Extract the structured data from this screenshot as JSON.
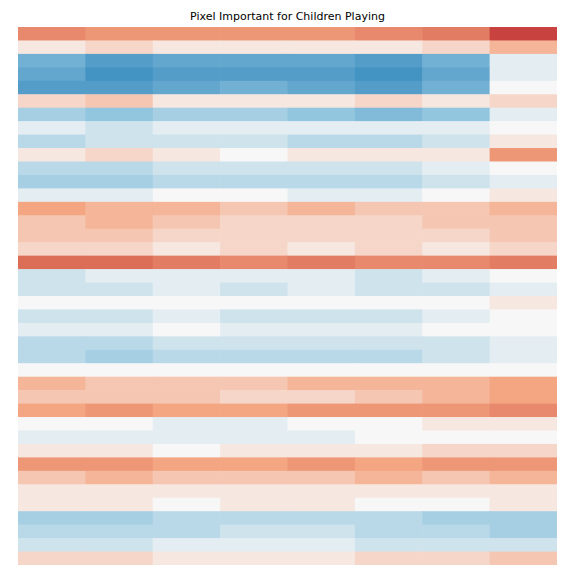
{
  "chart_data": {
    "type": "heatmap",
    "title": "Pixel Important for Children Playing",
    "tick_labels": false,
    "grid": false,
    "zlim": [
      -1,
      1
    ],
    "cells": [
      [
        0.35,
        0.3,
        0.3,
        0.3,
        0.3,
        0.35,
        0.4,
        0.6
      ],
      [
        0.05,
        0.1,
        0.05,
        0.05,
        0.05,
        0.05,
        0.1,
        0.2
      ],
      [
        -0.35,
        -0.45,
        -0.4,
        -0.4,
        -0.4,
        -0.45,
        -0.35,
        -0.05
      ],
      [
        -0.4,
        -0.5,
        -0.45,
        -0.45,
        -0.45,
        -0.5,
        -0.4,
        -0.05
      ],
      [
        -0.45,
        -0.45,
        -0.4,
        -0.35,
        -0.4,
        -0.45,
        -0.35,
        0.0
      ],
      [
        0.1,
        0.15,
        0.05,
        0.05,
        0.05,
        0.1,
        0.05,
        0.1
      ],
      [
        -0.2,
        -0.25,
        -0.2,
        -0.2,
        -0.25,
        -0.3,
        -0.25,
        -0.05
      ],
      [
        -0.05,
        -0.1,
        -0.05,
        -0.05,
        -0.05,
        -0.05,
        -0.05,
        0.0
      ],
      [
        -0.15,
        -0.1,
        -0.1,
        -0.1,
        -0.15,
        -0.15,
        -0.1,
        0.05
      ],
      [
        0.05,
        0.1,
        0.05,
        0.0,
        0.05,
        0.05,
        0.05,
        0.3
      ],
      [
        -0.15,
        -0.15,
        -0.1,
        -0.1,
        -0.1,
        -0.1,
        -0.05,
        0.0
      ],
      [
        -0.2,
        -0.2,
        -0.15,
        -0.15,
        -0.15,
        -0.15,
        -0.1,
        -0.05
      ],
      [
        -0.05,
        -0.05,
        0.0,
        0.0,
        -0.05,
        -0.05,
        0.0,
        0.05
      ],
      [
        0.25,
        0.2,
        0.2,
        0.15,
        0.2,
        0.15,
        0.15,
        0.2
      ],
      [
        0.15,
        0.2,
        0.15,
        0.1,
        0.1,
        0.1,
        0.15,
        0.15
      ],
      [
        0.15,
        0.15,
        0.1,
        0.1,
        0.1,
        0.1,
        0.1,
        0.15
      ],
      [
        0.1,
        0.1,
        0.05,
        0.1,
        0.05,
        0.1,
        0.05,
        0.1
      ],
      [
        0.45,
        0.45,
        0.4,
        0.35,
        0.4,
        0.35,
        0.35,
        0.4
      ],
      [
        -0.1,
        -0.05,
        -0.05,
        -0.05,
        -0.05,
        -0.1,
        -0.05,
        0.0
      ],
      [
        -0.1,
        -0.1,
        -0.05,
        -0.1,
        -0.05,
        -0.1,
        -0.1,
        -0.05
      ],
      [
        0.0,
        0.0,
        0.0,
        0.0,
        0.0,
        0.0,
        0.0,
        0.05
      ],
      [
        -0.1,
        -0.1,
        -0.05,
        -0.1,
        -0.1,
        -0.1,
        -0.05,
        0.0
      ],
      [
        -0.05,
        -0.05,
        0.0,
        -0.05,
        -0.05,
        -0.05,
        0.0,
        0.0
      ],
      [
        -0.15,
        -0.15,
        -0.1,
        -0.1,
        -0.1,
        -0.1,
        -0.1,
        -0.05
      ],
      [
        -0.15,
        -0.2,
        -0.15,
        -0.15,
        -0.15,
        -0.15,
        -0.1,
        -0.05
      ],
      [
        0.0,
        0.0,
        0.0,
        0.0,
        0.0,
        0.0,
        0.0,
        0.0
      ],
      [
        0.2,
        0.15,
        0.15,
        0.15,
        0.2,
        0.2,
        0.2,
        0.25
      ],
      [
        0.15,
        0.15,
        0.15,
        0.1,
        0.1,
        0.15,
        0.2,
        0.25
      ],
      [
        0.25,
        0.3,
        0.25,
        0.25,
        0.3,
        0.3,
        0.3,
        0.35
      ],
      [
        0.0,
        0.0,
        -0.05,
        -0.05,
        0.0,
        0.0,
        0.05,
        0.05
      ],
      [
        -0.05,
        -0.05,
        -0.05,
        -0.05,
        -0.05,
        0.0,
        0.0,
        0.0
      ],
      [
        0.05,
        0.05,
        0.0,
        0.05,
        0.05,
        0.05,
        0.1,
        0.1
      ],
      [
        0.3,
        0.3,
        0.25,
        0.25,
        0.3,
        0.25,
        0.3,
        0.3
      ],
      [
        0.15,
        0.2,
        0.15,
        0.15,
        0.15,
        0.2,
        0.15,
        0.2
      ],
      [
        0.05,
        0.05,
        0.05,
        0.05,
        0.05,
        0.05,
        0.05,
        0.05
      ],
      [
        0.05,
        0.05,
        0.0,
        0.05,
        0.05,
        0.0,
        0.0,
        0.05
      ],
      [
        -0.2,
        -0.2,
        -0.15,
        -0.15,
        -0.15,
        -0.15,
        -0.2,
        -0.2
      ],
      [
        -0.15,
        -0.15,
        -0.15,
        -0.1,
        -0.1,
        -0.15,
        -0.15,
        -0.2
      ],
      [
        -0.1,
        -0.1,
        -0.05,
        -0.05,
        -0.05,
        -0.1,
        -0.1,
        -0.1
      ],
      [
        0.1,
        0.1,
        0.05,
        0.05,
        0.05,
        0.1,
        0.1,
        0.15
      ]
    ]
  }
}
